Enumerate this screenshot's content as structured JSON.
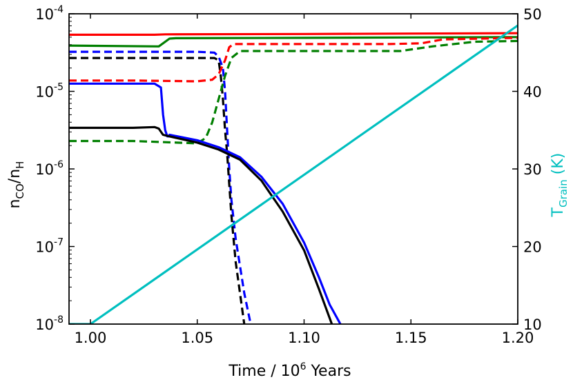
{
  "chart_data": {
    "type": "line",
    "xlabel": {
      "main": "Time / 10",
      "sup": "6",
      "tail": " Years"
    },
    "ylabel_left": {
      "main": "n",
      "sub1": "CO",
      "mid": "/n",
      "sub2": "H"
    },
    "ylabel_right": {
      "main": "T",
      "sub": "Grain",
      "tail": " (K)"
    },
    "xlim": [
      0.99,
      1.2
    ],
    "ylim_left_log10": [
      -8,
      -4
    ],
    "ylim_right": [
      10,
      50
    ],
    "x_ticks": [
      {
        "v": 1.0,
        "label": "1.00"
      },
      {
        "v": 1.05,
        "label": "1.05"
      },
      {
        "v": 1.1,
        "label": "1.10"
      },
      {
        "v": 1.15,
        "label": "1.15"
      },
      {
        "v": 1.2,
        "label": "1.20"
      }
    ],
    "y_left_ticks": [
      {
        "exp": -8,
        "base": "10",
        "sup": "-8"
      },
      {
        "exp": -7,
        "base": "10",
        "sup": "-7"
      },
      {
        "exp": -6,
        "base": "10",
        "sup": "-6"
      },
      {
        "exp": -5,
        "base": "10",
        "sup": "-5"
      },
      {
        "exp": -4,
        "base": "10",
        "sup": "-4"
      }
    ],
    "y_right_ticks": [
      {
        "v": 10,
        "label": "10"
      },
      {
        "v": 20,
        "label": "20"
      },
      {
        "v": 30,
        "label": "30"
      },
      {
        "v": 40,
        "label": "40"
      },
      {
        "v": 50,
        "label": "50"
      }
    ],
    "colors": {
      "red": "#ff0000",
      "green": "#007f00",
      "blue": "#0000ff",
      "black": "#000000",
      "cyan": "#00bfbf",
      "right_axis_label": "#00bfbf"
    },
    "series": [
      {
        "name": "red-solid",
        "color": "red",
        "dash": false,
        "axis": "left",
        "points": [
          [
            0.99,
            -4.27
          ],
          [
            1.03,
            -4.27
          ],
          [
            1.035,
            -4.265
          ],
          [
            1.1,
            -4.26
          ],
          [
            1.15,
            -4.255
          ],
          [
            1.2,
            -4.25
          ]
        ]
      },
      {
        "name": "green-solid",
        "color": "green",
        "dash": false,
        "axis": "left",
        "points": [
          [
            0.99,
            -4.41
          ],
          [
            1.032,
            -4.42
          ],
          [
            1.034,
            -4.38
          ],
          [
            1.037,
            -4.32
          ],
          [
            1.04,
            -4.315
          ],
          [
            1.1,
            -4.31
          ],
          [
            1.15,
            -4.305
          ],
          [
            1.2,
            -4.3
          ]
        ]
      },
      {
        "name": "blue-dashed",
        "color": "blue",
        "dash": true,
        "axis": "left",
        "points": [
          [
            0.99,
            -4.49
          ],
          [
            1.05,
            -4.49
          ],
          [
            1.058,
            -4.5
          ],
          [
            1.06,
            -4.55
          ],
          [
            1.062,
            -4.7
          ],
          [
            1.063,
            -5.0
          ],
          [
            1.064,
            -5.5
          ],
          [
            1.065,
            -6.0
          ],
          [
            1.066,
            -6.4
          ],
          [
            1.068,
            -6.9
          ],
          [
            1.072,
            -7.6
          ],
          [
            1.075,
            -8.0
          ]
        ]
      },
      {
        "name": "black-dashed",
        "color": "black",
        "dash": true,
        "axis": "left",
        "points": [
          [
            0.99,
            -4.57
          ],
          [
            1.058,
            -4.57
          ],
          [
            1.06,
            -4.6
          ],
          [
            1.061,
            -4.8
          ],
          [
            1.062,
            -5.1
          ],
          [
            1.063,
            -5.5
          ],
          [
            1.064,
            -5.8
          ],
          [
            1.065,
            -6.2
          ],
          [
            1.066,
            -6.6
          ],
          [
            1.068,
            -7.2
          ],
          [
            1.071,
            -7.8
          ],
          [
            1.072,
            -8.0
          ]
        ]
      },
      {
        "name": "red-dashed",
        "color": "red",
        "dash": true,
        "axis": "left",
        "points": [
          [
            0.99,
            -4.86
          ],
          [
            1.02,
            -4.86
          ],
          [
            1.05,
            -4.87
          ],
          [
            1.057,
            -4.85
          ],
          [
            1.06,
            -4.78
          ],
          [
            1.063,
            -4.6
          ],
          [
            1.065,
            -4.43
          ],
          [
            1.067,
            -4.39
          ],
          [
            1.1,
            -4.39
          ],
          [
            1.14,
            -4.39
          ],
          [
            1.155,
            -4.38
          ],
          [
            1.165,
            -4.33
          ],
          [
            1.2,
            -4.31
          ]
        ]
      },
      {
        "name": "green-dashed",
        "color": "green",
        "dash": true,
        "axis": "left",
        "points": [
          [
            0.99,
            -5.64
          ],
          [
            1.02,
            -5.64
          ],
          [
            1.05,
            -5.67
          ],
          [
            1.054,
            -5.6
          ],
          [
            1.057,
            -5.4
          ],
          [
            1.06,
            -5.1
          ],
          [
            1.063,
            -4.8
          ],
          [
            1.066,
            -4.57
          ],
          [
            1.07,
            -4.48
          ],
          [
            1.1,
            -4.48
          ],
          [
            1.145,
            -4.48
          ],
          [
            1.16,
            -4.42
          ],
          [
            1.18,
            -4.36
          ],
          [
            1.2,
            -4.35
          ]
        ]
      },
      {
        "name": "blue-solid",
        "color": "blue",
        "dash": false,
        "axis": "left",
        "points": [
          [
            0.99,
            -4.9
          ],
          [
            1.03,
            -4.9
          ],
          [
            1.033,
            -4.95
          ],
          [
            1.034,
            -5.3
          ],
          [
            1.035,
            -5.5
          ],
          [
            1.036,
            -5.58
          ],
          [
            1.037,
            -5.58
          ],
          [
            1.037,
            -5.56
          ],
          [
            1.05,
            -5.63
          ],
          [
            1.06,
            -5.72
          ],
          [
            1.07,
            -5.85
          ],
          [
            1.08,
            -6.1
          ],
          [
            1.09,
            -6.45
          ],
          [
            1.1,
            -6.95
          ],
          [
            1.107,
            -7.4
          ],
          [
            1.112,
            -7.75
          ],
          [
            1.117,
            -8.0
          ]
        ]
      },
      {
        "name": "black-solid",
        "color": "black",
        "dash": false,
        "axis": "left",
        "points": [
          [
            0.99,
            -5.47
          ],
          [
            1.02,
            -5.47
          ],
          [
            1.03,
            -5.46
          ],
          [
            1.032,
            -5.48
          ],
          [
            1.034,
            -5.56
          ],
          [
            1.037,
            -5.58
          ],
          [
            1.05,
            -5.66
          ],
          [
            1.06,
            -5.75
          ],
          [
            1.07,
            -5.88
          ],
          [
            1.08,
            -6.15
          ],
          [
            1.09,
            -6.55
          ],
          [
            1.1,
            -7.05
          ],
          [
            1.107,
            -7.55
          ],
          [
            1.113,
            -8.0
          ]
        ]
      },
      {
        "name": "cyan-grain-temperature",
        "color": "cyan",
        "dash": false,
        "axis": "right",
        "points": [
          [
            0.99,
            10.0
          ],
          [
            1.0,
            10.0
          ],
          [
            1.2,
            48.5
          ]
        ]
      }
    ]
  }
}
